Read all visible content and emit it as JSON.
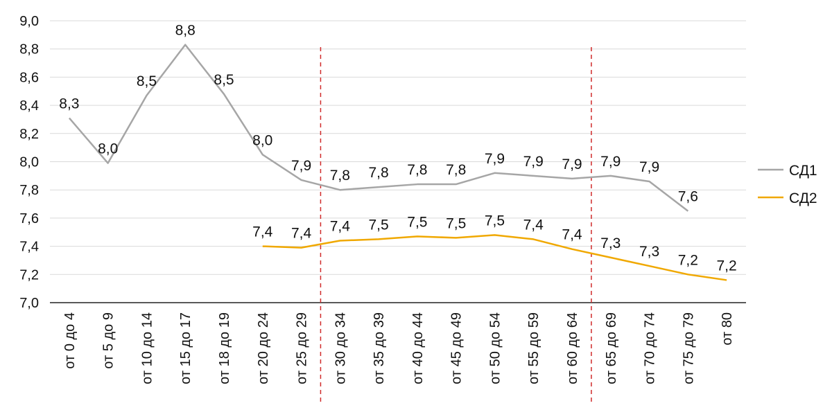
{
  "chart_data": {
    "type": "line",
    "title": "",
    "xlabel": "",
    "ylabel": "",
    "categories": [
      "от 0 до 4",
      "от 5 до 9",
      "от 10 до 14",
      "от 15 до 17",
      "от 18 до 19",
      "от 20 до 24",
      "от 25 до 29",
      "от 30 до 34",
      "от 35 до 39",
      "от 40 до 44",
      "от 45 до 49",
      "от 50 до 54",
      "от 55 до 59",
      "от 60 до 64",
      "от 65 до 69",
      "от 70 до 74",
      "от 75 до 79",
      "от 80"
    ],
    "ylim": [
      7.0,
      9.0
    ],
    "yticks": [
      "7,0",
      "7,2",
      "7,4",
      "7,6",
      "7,8",
      "8,0",
      "8,2",
      "8,4",
      "8,6",
      "8,8",
      "9,0"
    ],
    "grid": true,
    "legend_position": "right",
    "series": [
      {
        "name": "СД1",
        "color": "#a6a6a6",
        "values": [
          8.31,
          7.99,
          8.47,
          8.83,
          8.48,
          8.05,
          7.87,
          7.8,
          7.82,
          7.84,
          7.84,
          7.92,
          7.9,
          7.88,
          7.9,
          7.86,
          7.65,
          null
        ],
        "labels": [
          "8,3",
          "8,0",
          "8,5",
          "8,8",
          "8,5",
          "8,0",
          "7,9",
          "7,8",
          "7,8",
          "7,8",
          "7,8",
          "7,9",
          "7,9",
          "7,9",
          "7,9",
          "7,9",
          "7,6",
          ""
        ]
      },
      {
        "name": "СД2",
        "color": "#f0a800",
        "values": [
          null,
          null,
          null,
          null,
          null,
          7.4,
          7.39,
          7.44,
          7.45,
          7.47,
          7.46,
          7.48,
          7.45,
          7.38,
          7.32,
          7.26,
          7.2,
          7.16
        ],
        "labels": [
          "",
          "",
          "",
          "",
          "",
          "7,4",
          "7,4",
          "7,4",
          "7,5",
          "7,5",
          "7,5",
          "7,5",
          "7,4",
          "7,4",
          "7,3",
          "7,3",
          "7,2",
          "7,2"
        ]
      }
    ],
    "reference_lines": [
      {
        "between": [
          "от 25 до 29",
          "от 30 до 34"
        ],
        "color": "#d02a2a",
        "style": "dashed"
      },
      {
        "between": [
          "от 60 до 64",
          "от 65 до 69"
        ],
        "color": "#d02a2a",
        "style": "dashed"
      }
    ]
  }
}
